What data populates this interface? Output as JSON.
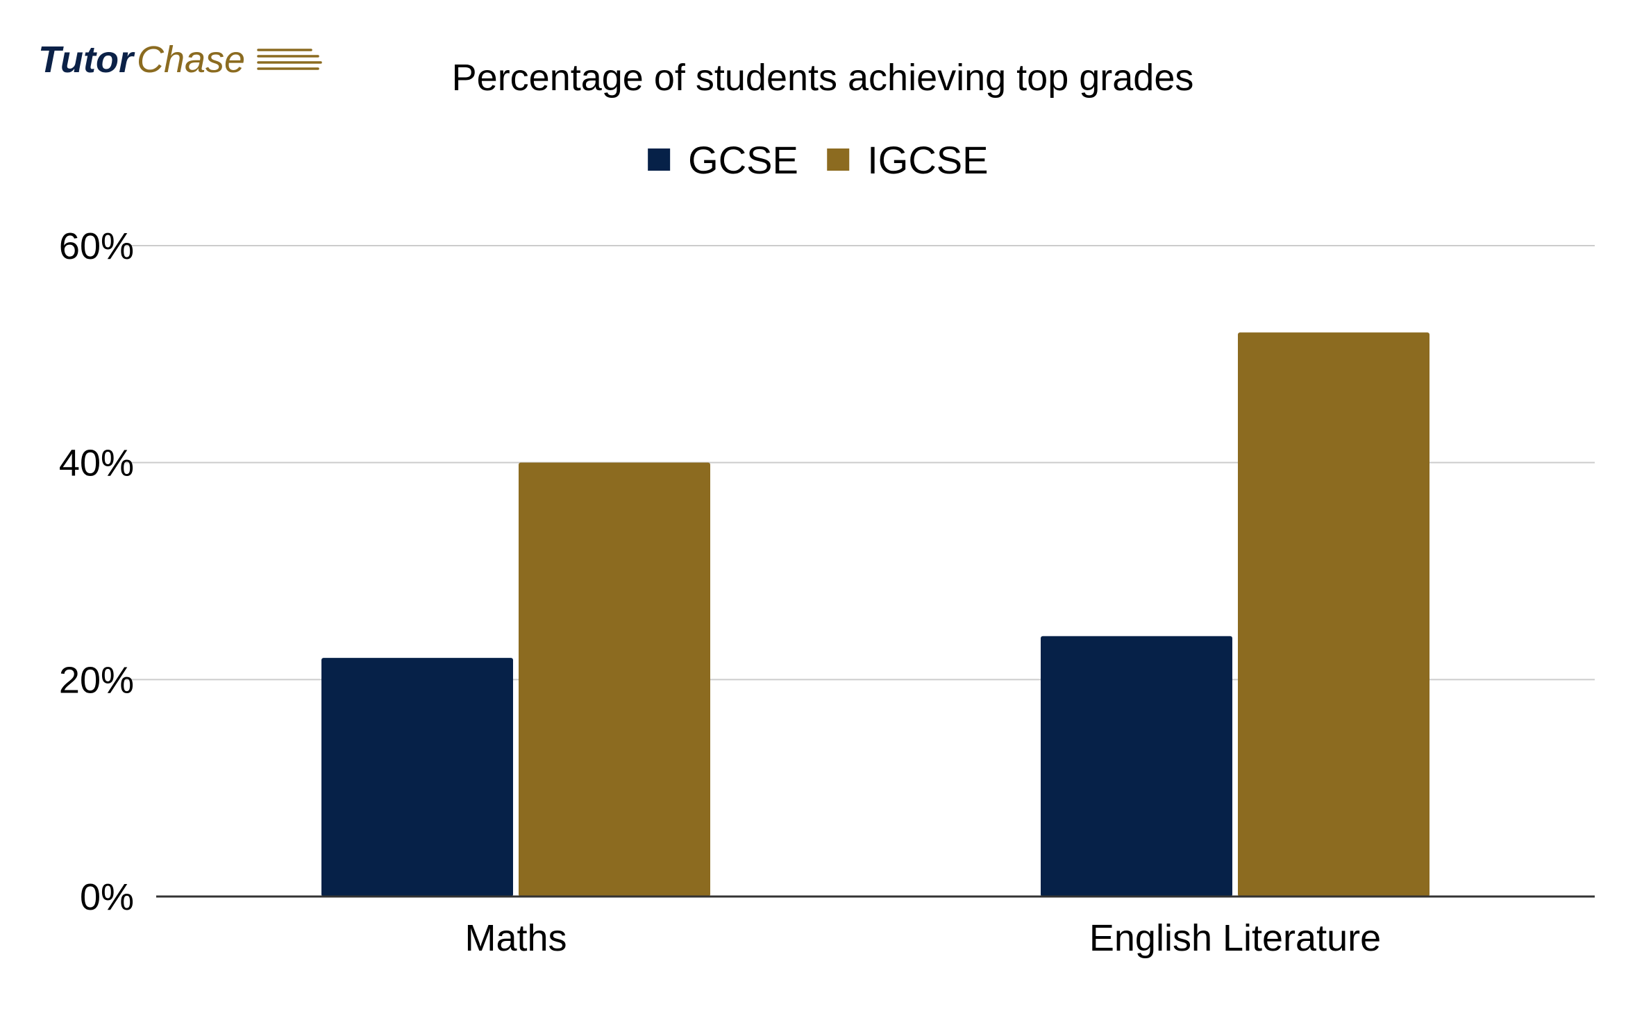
{
  "logo": {
    "primary": "Tutor",
    "secondary": "Chase",
    "primary_color": "#0b2147",
    "secondary_color": "#8b6b20"
  },
  "chart_data": {
    "type": "bar",
    "title": "Percentage of students achieving top grades",
    "xlabel": "",
    "ylabel": "",
    "categories": [
      "Maths",
      "English Literature"
    ],
    "series": [
      {
        "name": "GCSE",
        "values": [
          22,
          24
        ],
        "color": "#062148"
      },
      {
        "name": "IGCSE",
        "values": [
          40,
          52
        ],
        "color": "#8c6b20"
      }
    ],
    "ylim": [
      0,
      60
    ],
    "yticks": [
      0,
      20,
      40,
      60
    ],
    "ytick_labels": [
      "0%",
      "20%",
      "40%",
      "60%"
    ],
    "value_suffix": "%",
    "grid": true,
    "legend_position": "top-center"
  }
}
